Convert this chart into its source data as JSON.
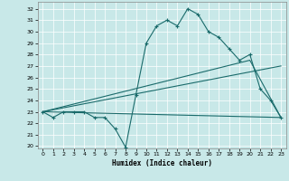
{
  "xlabel": "Humidex (Indice chaleur)",
  "bg_color": "#c8e8e8",
  "line_color": "#1a6b6b",
  "xlim": [
    -0.5,
    23.5
  ],
  "ylim": [
    19.8,
    32.6
  ],
  "xticks": [
    0,
    1,
    2,
    3,
    4,
    5,
    6,
    7,
    8,
    9,
    10,
    11,
    12,
    13,
    14,
    15,
    16,
    17,
    18,
    19,
    20,
    21,
    22,
    23
  ],
  "yticks": [
    20,
    21,
    22,
    23,
    24,
    25,
    26,
    27,
    28,
    29,
    30,
    31,
    32
  ],
  "main_line": {
    "x": [
      0,
      1,
      2,
      3,
      4,
      5,
      6,
      7,
      8,
      9,
      10,
      11,
      12,
      13,
      14,
      15,
      16,
      17,
      18,
      19,
      20,
      21,
      22,
      23
    ],
    "y": [
      23.0,
      22.5,
      23.0,
      23.0,
      23.0,
      22.5,
      22.5,
      21.5,
      19.9,
      24.5,
      29.0,
      30.5,
      31.0,
      30.5,
      32.0,
      31.5,
      30.0,
      29.5,
      28.5,
      27.5,
      28.0,
      25.0,
      24.0,
      22.5
    ]
  },
  "straight_lines": [
    {
      "x": [
        0,
        23
      ],
      "y": [
        23.0,
        22.5
      ]
    },
    {
      "x": [
        0,
        23
      ],
      "y": [
        23.0,
        27.0
      ]
    },
    {
      "x": [
        0,
        20,
        23
      ],
      "y": [
        23.0,
        27.5,
        22.5
      ]
    }
  ]
}
